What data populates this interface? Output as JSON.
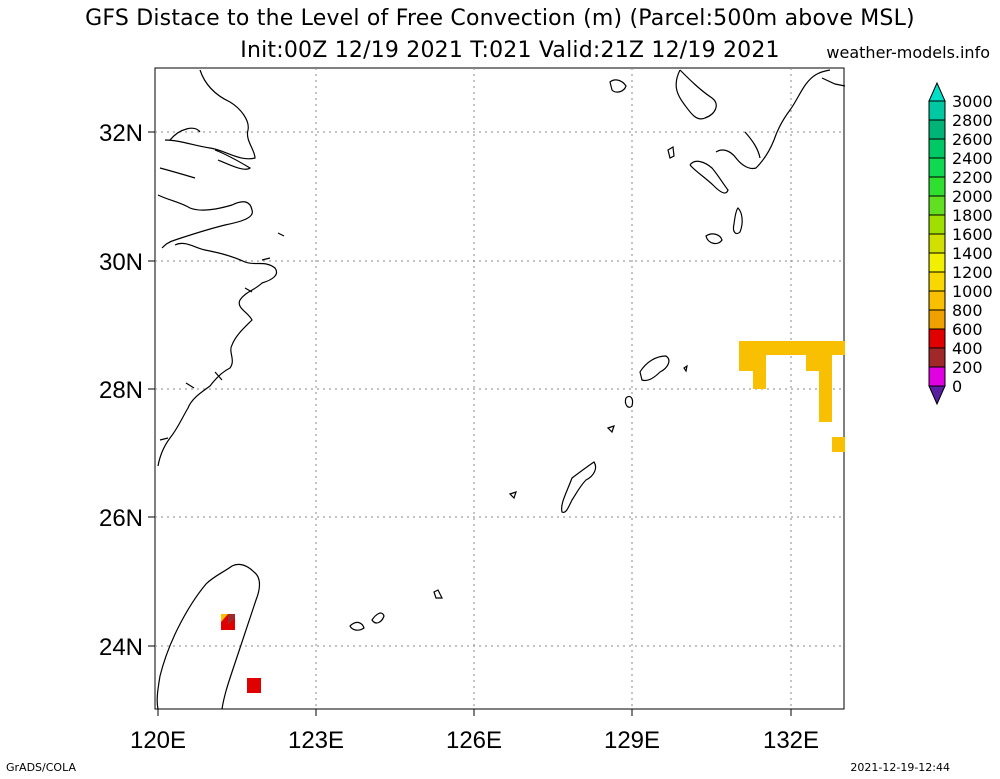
{
  "title_line1": "GFS Distace to the Level of Free Convection (m) (Parcel:500m above MSL)",
  "title_line2": "Init:00Z 12/19 2021 T:021 Valid:21Z 12/19 2021",
  "site": "weather-models.info",
  "footer_left": "GrADS/COLA",
  "footer_right": "2021-12-19-12:44",
  "map": {
    "lat_labels": [
      "32N",
      "30N",
      "28N",
      "26N",
      "24N"
    ],
    "lon_labels": [
      "120E",
      "123E",
      "126E",
      "129E",
      "132E"
    ]
  },
  "colorbar": {
    "labels": [
      "3000",
      "2800",
      "2600",
      "2400",
      "2200",
      "2000",
      "1800",
      "1600",
      "1400",
      "1200",
      "1000",
      "800",
      "600",
      "400",
      "200",
      "0"
    ],
    "colors": [
      "#00e0c8",
      "#00c8a0",
      "#00b478",
      "#00c864",
      "#10d850",
      "#30e030",
      "#60e020",
      "#a0e000",
      "#d0e000",
      "#f0f000",
      "#f8d800",
      "#f8c000",
      "#f0a000",
      "#e00000",
      "#a02828",
      "#e000e0",
      "#5a1ea0"
    ]
  }
}
